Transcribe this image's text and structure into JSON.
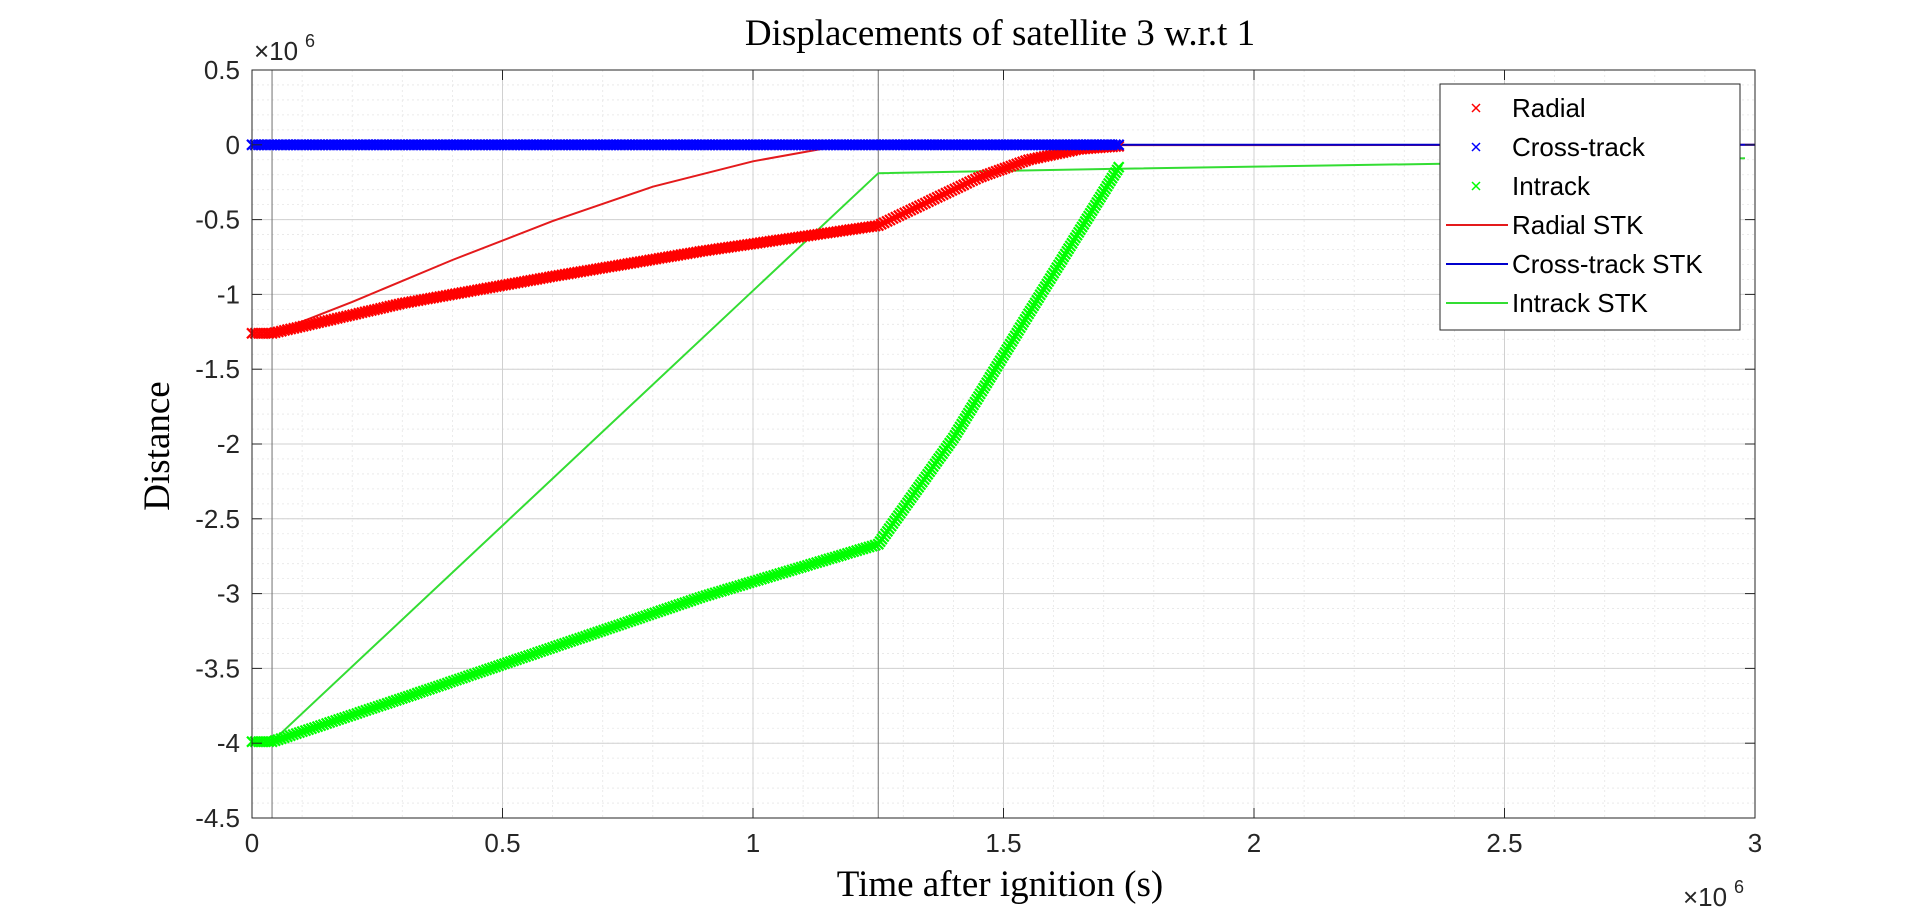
{
  "chart_data": {
    "type": "line",
    "title": "Displacements of satellite 3 w.r.t 1",
    "xlabel": "Time after ignition (s)",
    "ylabel": "Distance",
    "x_exponent_label": "×10",
    "x_exponent_power": "6",
    "y_exponent_label": "×10",
    "y_exponent_power": "6",
    "xlim": [
      0,
      3000000
    ],
    "ylim": [
      -4500000,
      500000
    ],
    "x_ticks": [
      0,
      500000,
      1000000,
      1500000,
      2000000,
      2500000,
      3000000
    ],
    "x_tick_labels": [
      "0",
      "0.5",
      "1",
      "1.5",
      "2",
      "2.5",
      "3"
    ],
    "y_ticks": [
      500000,
      0,
      -500000,
      -1000000,
      -1500000,
      -2000000,
      -2500000,
      -3000000,
      -3500000,
      -4000000,
      -4500000
    ],
    "y_tick_labels": [
      "0.5",
      "0",
      "-0.5",
      "-1",
      "-1.5",
      "-2",
      "-2.5",
      "-3",
      "-3.5",
      "-4",
      "-4.5"
    ],
    "grid": true,
    "minor_grid": true,
    "legend_position": "top-right",
    "vertical_lines": [
      40000,
      1250000
    ],
    "series": [
      {
        "name": "Radial",
        "style": "marker",
        "color": "#ff0000",
        "points": [
          [
            0,
            -1260000
          ],
          [
            40000,
            -1260000
          ],
          [
            300000,
            -1060000
          ],
          [
            600000,
            -880000
          ],
          [
            900000,
            -710000
          ],
          [
            1250000,
            -540000
          ],
          [
            1350000,
            -380000
          ],
          [
            1450000,
            -220000
          ],
          [
            1550000,
            -100000
          ],
          [
            1650000,
            -30000
          ],
          [
            1730000,
            -10000
          ]
        ]
      },
      {
        "name": "Cross-track",
        "style": "marker",
        "color": "#0000ff",
        "points": [
          [
            0,
            0
          ],
          [
            300000,
            0
          ],
          [
            600000,
            0
          ],
          [
            900000,
            0
          ],
          [
            1250000,
            0
          ],
          [
            1500000,
            0
          ],
          [
            1730000,
            0
          ]
        ]
      },
      {
        "name": "Intrack",
        "style": "marker",
        "color": "#00ff00",
        "points": [
          [
            0,
            -3990000
          ],
          [
            40000,
            -3990000
          ],
          [
            300000,
            -3700000
          ],
          [
            600000,
            -3360000
          ],
          [
            900000,
            -3020000
          ],
          [
            1250000,
            -2670000
          ],
          [
            1400000,
            -1960000
          ],
          [
            1550000,
            -1130000
          ],
          [
            1730000,
            -150000
          ]
        ]
      },
      {
        "name": "Radial STK",
        "style": "line",
        "color": "#e41a1c",
        "points": [
          [
            40000,
            -1260000
          ],
          [
            200000,
            -1050000
          ],
          [
            400000,
            -770000
          ],
          [
            600000,
            -510000
          ],
          [
            800000,
            -280000
          ],
          [
            1000000,
            -110000
          ],
          [
            1150000,
            -20000
          ],
          [
            1250000,
            -5000
          ],
          [
            1500000,
            -3000
          ],
          [
            2000000,
            -2000
          ],
          [
            3000000,
            0
          ]
        ]
      },
      {
        "name": "Cross-track STK",
        "style": "line",
        "color": "#0000cc",
        "points": [
          [
            40000,
            0
          ],
          [
            1000000,
            0
          ],
          [
            2000000,
            0
          ],
          [
            3000000,
            0
          ]
        ]
      },
      {
        "name": "Intrack STK",
        "style": "line",
        "color": "#33dd33",
        "points": [
          [
            40000,
            -3990000
          ],
          [
            1250000,
            -190000
          ],
          [
            1730000,
            -160000
          ],
          [
            2500000,
            -120000
          ],
          [
            2980000,
            -90000
          ]
        ]
      }
    ]
  }
}
